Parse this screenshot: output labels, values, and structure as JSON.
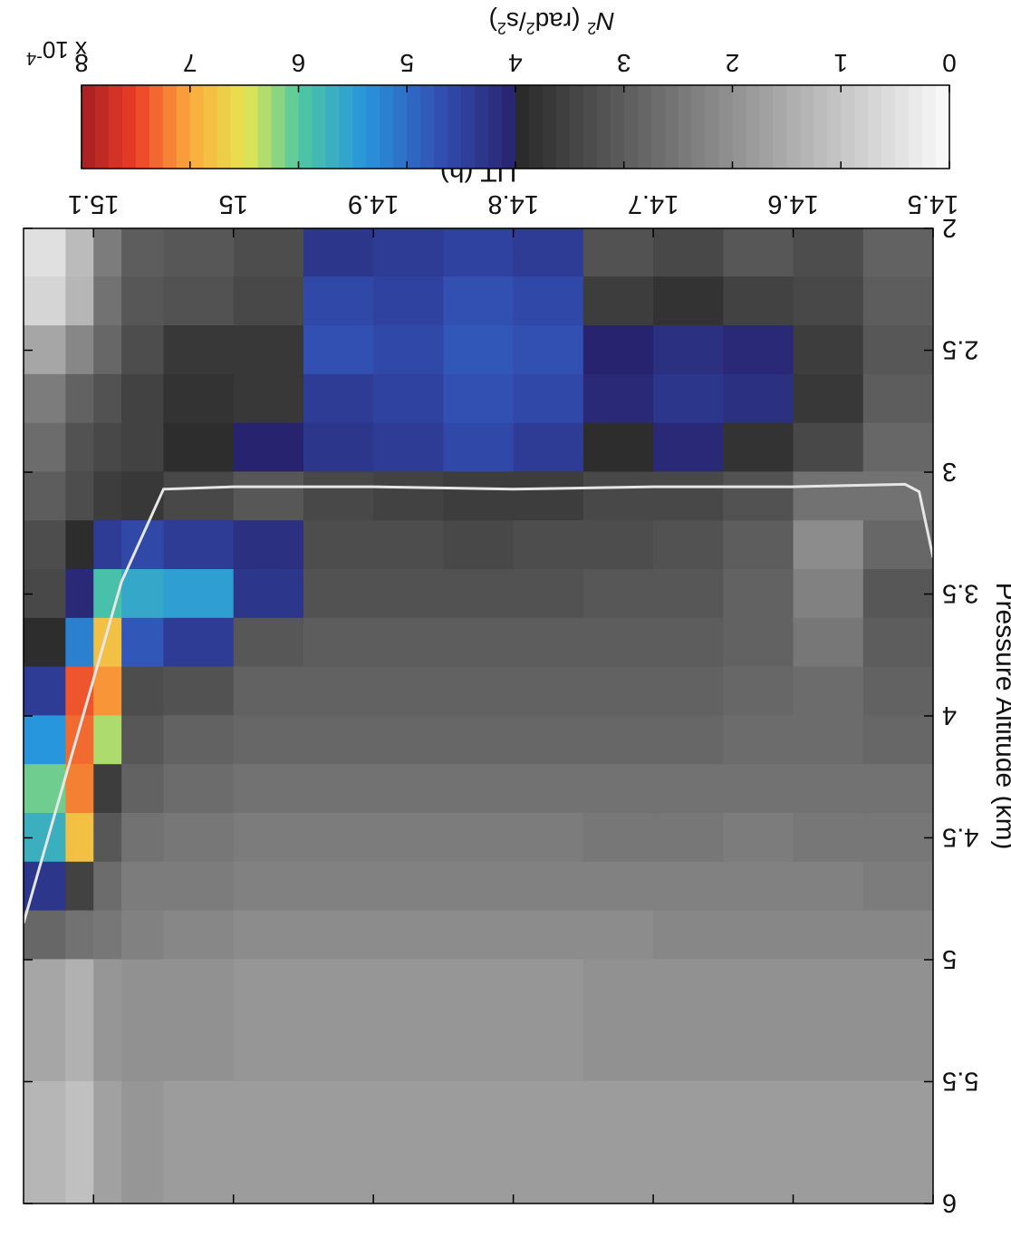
{
  "chart_data": [
    {
      "type": "heatmap",
      "title": "",
      "xlabel": "UT (h)",
      "ylabel": "Pressure Altitude (km)",
      "xlim": [
        14.5,
        15.15
      ],
      "ylim": [
        2,
        6
      ],
      "xticks": [
        "14.5",
        "14.6",
        "14.7",
        "14.8",
        "14.9",
        "15",
        "15.1"
      ],
      "yticks": [
        "2",
        "2.5",
        "3",
        "3.5",
        "4",
        "4.5",
        "5",
        "5.5",
        "6"
      ],
      "x_edges": [
        14.5,
        14.55,
        14.6,
        14.65,
        14.7,
        14.75,
        14.8,
        14.85,
        14.9,
        14.95,
        15.0,
        15.05,
        15.08,
        15.1,
        15.12,
        15.15
      ],
      "y_edges": [
        2.0,
        2.2,
        2.4,
        2.6,
        2.8,
        3.0,
        3.2,
        3.4,
        3.6,
        3.8,
        4.0,
        4.2,
        4.4,
        4.6,
        4.8,
        5.0,
        5.5,
        6.0
      ],
      "z": [
        [
          2.9,
          3.3,
          3.1,
          3.4,
          3.2,
          4.4,
          4.5,
          4.4,
          4.3,
          3.3,
          3.1,
          3.0,
          2.4,
          1.2,
          0.5
        ],
        [
          3.0,
          3.4,
          3.5,
          3.8,
          3.6,
          4.6,
          4.7,
          4.5,
          4.6,
          3.4,
          3.2,
          3.1,
          2.6,
          1.3,
          0.7
        ],
        [
          3.1,
          3.6,
          4.1,
          4.2,
          4.0,
          4.7,
          4.8,
          4.6,
          4.7,
          3.7,
          3.7,
          3.3,
          2.8,
          2.2,
          1.6
        ],
        [
          3.0,
          3.7,
          4.2,
          4.3,
          4.1,
          4.6,
          4.7,
          4.5,
          4.4,
          3.7,
          3.8,
          3.5,
          3.2,
          2.9,
          2.4
        ],
        [
          2.8,
          3.4,
          3.8,
          4.1,
          3.9,
          4.4,
          4.6,
          4.4,
          4.3,
          4.0,
          3.9,
          3.5,
          3.4,
          3.2,
          2.7
        ],
        [
          2.6,
          2.6,
          3.2,
          3.4,
          3.4,
          3.6,
          3.6,
          3.5,
          3.4,
          3.1,
          3.4,
          3.7,
          3.6,
          3.3,
          3.0
        ],
        [
          2.8,
          2.1,
          3.0,
          3.2,
          3.3,
          3.3,
          3.4,
          3.3,
          3.3,
          4.2,
          4.4,
          4.6,
          4.4,
          3.9,
          3.3
        ],
        [
          3.1,
          2.3,
          2.9,
          3.1,
          3.1,
          3.2,
          3.2,
          3.2,
          3.2,
          4.3,
          5.5,
          5.6,
          5.9,
          4.1,
          3.4
        ],
        [
          3.0,
          2.5,
          2.9,
          3.0,
          3.0,
          3.0,
          3.0,
          3.0,
          3.0,
          3.1,
          4.4,
          4.8,
          6.8,
          5.2,
          3.9
        ],
        [
          2.9,
          2.7,
          2.8,
          2.9,
          2.9,
          2.9,
          2.9,
          2.9,
          2.9,
          2.9,
          3.2,
          3.3,
          7.1,
          7.4,
          4.4
        ],
        [
          2.8,
          2.7,
          2.7,
          2.8,
          2.8,
          2.8,
          2.8,
          2.8,
          2.8,
          2.8,
          2.9,
          3.1,
          6.3,
          7.3,
          5.4
        ],
        [
          2.6,
          2.6,
          2.6,
          2.6,
          2.6,
          2.6,
          2.6,
          2.6,
          2.6,
          2.6,
          2.7,
          2.9,
          3.6,
          7.2,
          6.1
        ],
        [
          2.5,
          2.5,
          2.4,
          2.5,
          2.5,
          2.4,
          2.4,
          2.4,
          2.4,
          2.4,
          2.5,
          2.6,
          3.1,
          6.8,
          5.7
        ],
        [
          2.4,
          2.3,
          2.3,
          2.3,
          2.3,
          2.3,
          2.3,
          2.3,
          2.3,
          2.3,
          2.4,
          2.4,
          2.7,
          3.5,
          4.3
        ],
        [
          2.2,
          2.2,
          2.2,
          2.2,
          2.1,
          2.1,
          2.1,
          2.1,
          2.1,
          2.1,
          2.2,
          2.3,
          2.5,
          2.6,
          2.8
        ],
        [
          2.0,
          2.0,
          2.0,
          2.0,
          2.0,
          1.9,
          1.9,
          1.9,
          1.9,
          1.9,
          2.0,
          2.0,
          1.9,
          1.4,
          1.6
        ],
        [
          1.8,
          1.8,
          1.8,
          1.8,
          1.8,
          1.8,
          1.8,
          1.8,
          1.8,
          1.8,
          1.8,
          1.9,
          1.7,
          1.1,
          1.3
        ]
      ],
      "line": {
        "color": "#e6e6e6",
        "x": [
          14.5,
          14.51,
          14.52,
          14.6,
          14.7,
          14.8,
          14.9,
          15.0,
          15.05,
          15.08,
          15.1,
          15.12,
          15.15
        ],
        "y": [
          3.35,
          3.08,
          3.05,
          3.06,
          3.06,
          3.07,
          3.06,
          3.06,
          3.07,
          3.45,
          3.85,
          4.25,
          4.85
        ]
      },
      "colorbar": {
        "label": "N² (rad²/s²)",
        "label_base": "N",
        "label_unit_open": " (rad",
        "label_unit_mid": "/s",
        "label_unit_close": ")",
        "label_sup": "2",
        "multiplier_base": "x 10",
        "multiplier_exp": "-4",
        "range": [
          0,
          8
        ],
        "ticks": [
          "0",
          "1",
          "2",
          "3",
          "4",
          "5",
          "6",
          "7",
          "8"
        ],
        "colormap": "grayscale 0–4 (white to near-black), jet 4–8 (dark blue, blue, cyan, green, yellow, orange, red, dark red)"
      }
    }
  ]
}
